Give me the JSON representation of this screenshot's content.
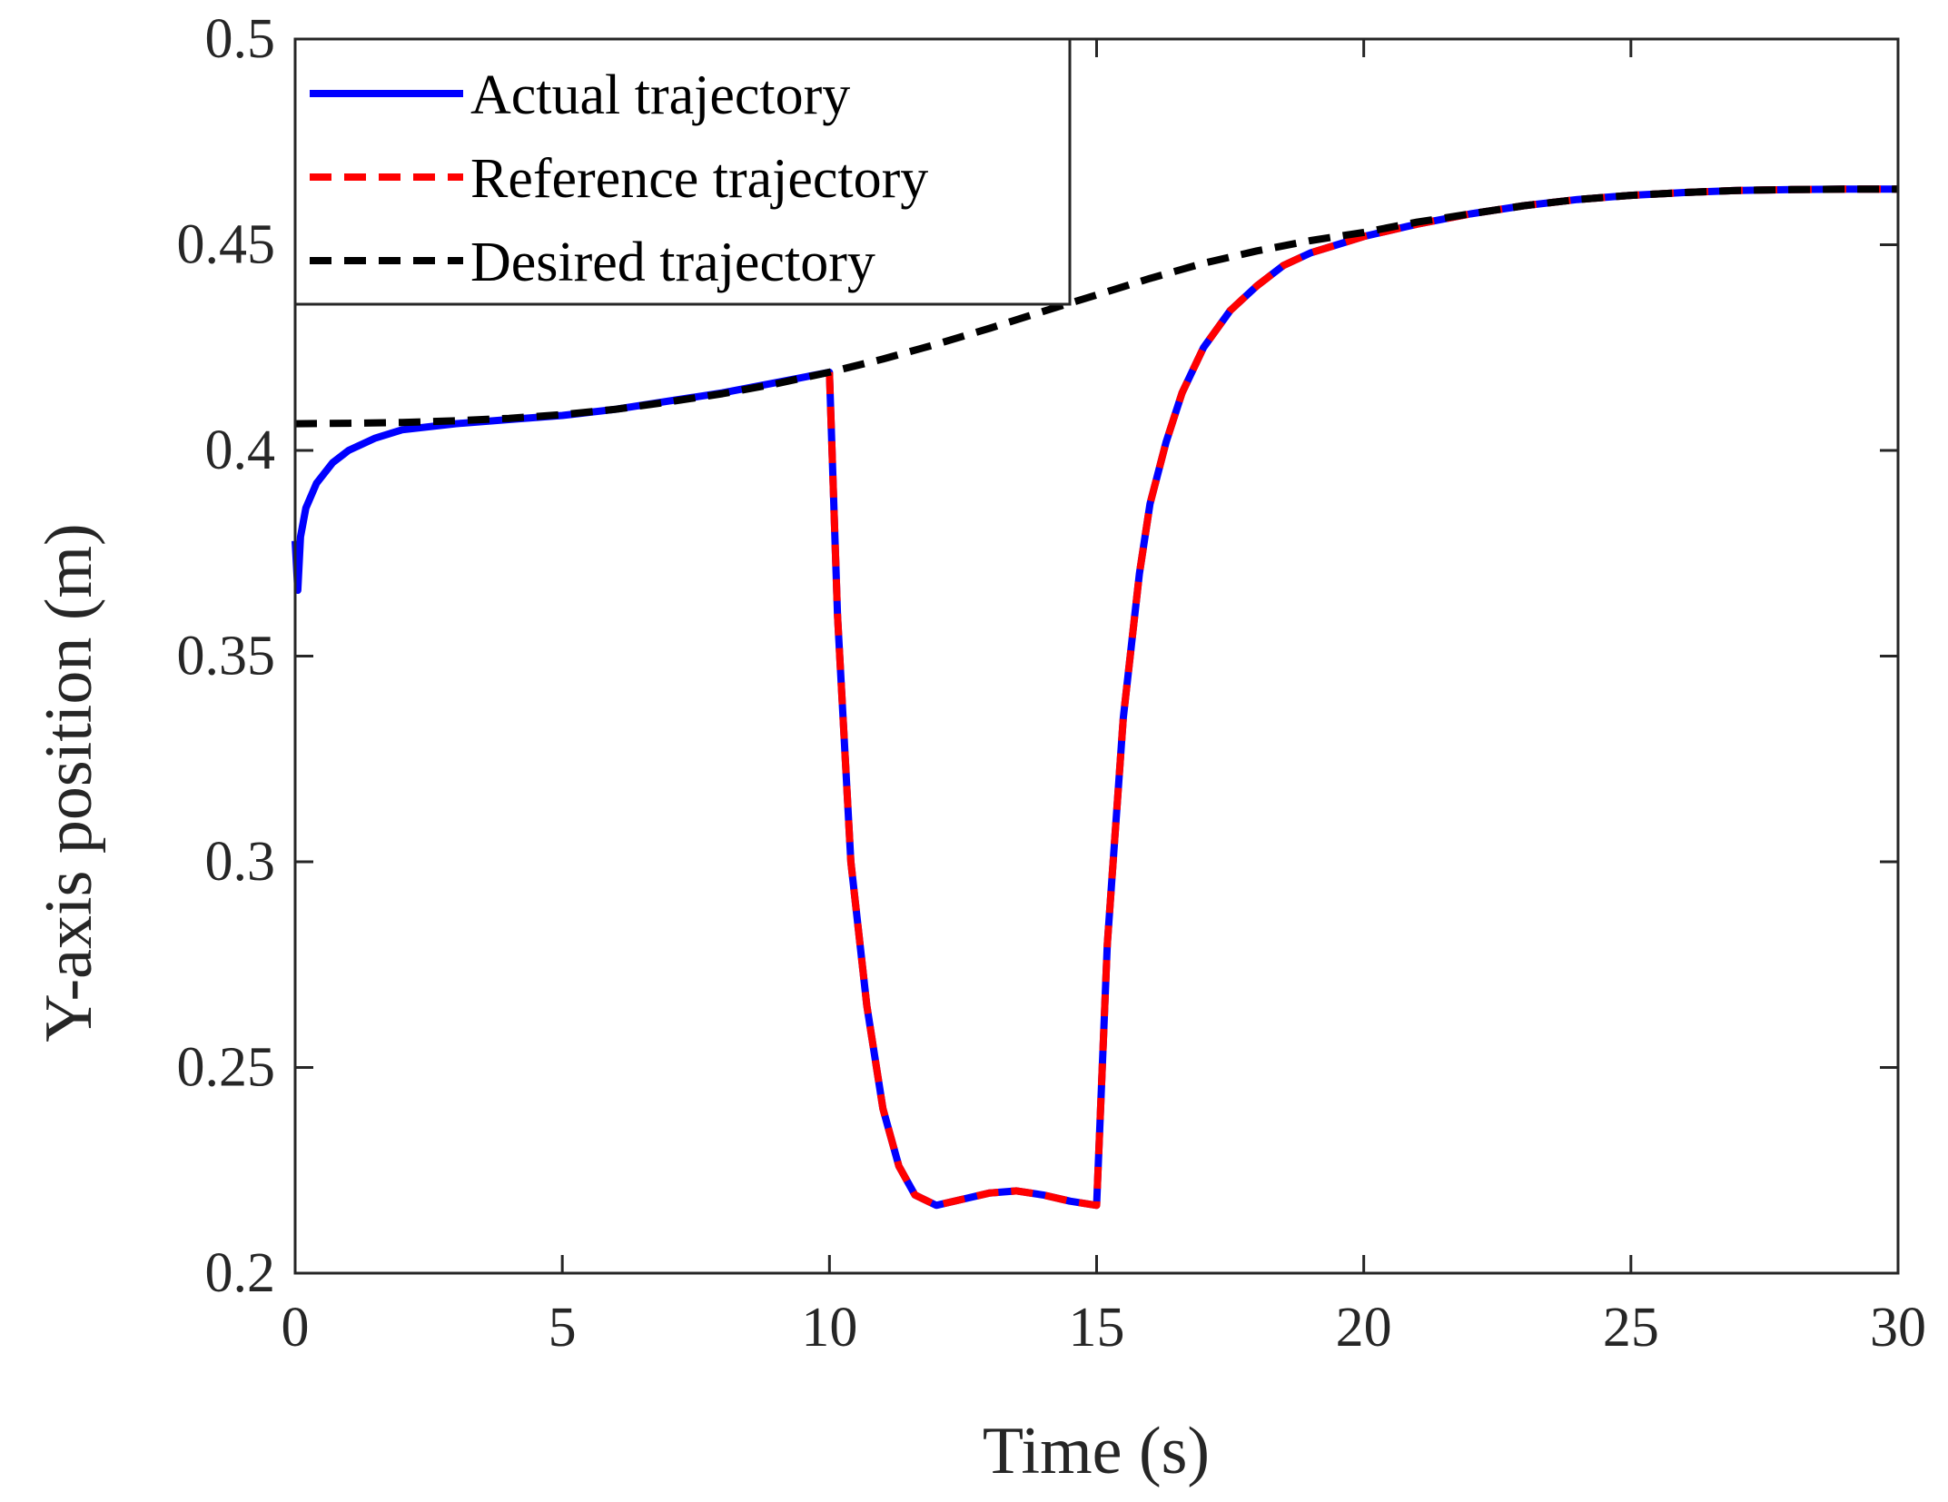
{
  "chart_data": {
    "type": "line",
    "title": "",
    "xlabel": "Time (s)",
    "ylabel": "Y-axis position (m)",
    "xlim": [
      0,
      30
    ],
    "ylim": [
      0.2,
      0.5
    ],
    "xticks": [
      0,
      5,
      10,
      15,
      20,
      25,
      30
    ],
    "xtick_labels": [
      "0",
      "5",
      "10",
      "15",
      "20",
      "25",
      "30"
    ],
    "yticks": [
      0.2,
      0.25,
      0.3,
      0.35,
      0.4,
      0.45,
      0.5
    ],
    "ytick_labels": [
      "0.2",
      "0.25",
      "0.3",
      "0.35",
      "0.4",
      "0.45",
      "0.5"
    ],
    "grid": false,
    "legend_position": "top-left",
    "series": [
      {
        "name": "Actual trajectory",
        "color": "#0000ff",
        "style": "solid",
        "x": [
          0,
          0.05,
          0.1,
          0.2,
          0.4,
          0.7,
          1.0,
          1.5,
          2.0,
          3.0,
          4.0,
          5.0,
          6.0,
          7.0,
          8.0,
          9.0,
          10.0,
          10.15,
          10.4,
          10.7,
          11.0,
          11.3,
          11.6,
          12.0,
          12.5,
          13.0,
          13.5,
          14.0,
          14.5,
          15.0,
          15.2,
          15.5,
          15.8,
          16.0,
          16.3,
          16.6,
          17.0,
          17.5,
          18.0,
          18.5,
          19.0,
          19.5,
          20.0,
          21.0,
          22.0,
          23.0,
          24.0,
          25.0,
          26.0,
          27.0,
          28.0,
          29.0,
          30.0
        ],
        "y": [
          0.378,
          0.366,
          0.379,
          0.386,
          0.392,
          0.397,
          0.4,
          0.403,
          0.405,
          0.4065,
          0.4075,
          0.4085,
          0.41,
          0.412,
          0.414,
          0.4165,
          0.419,
          0.36,
          0.3,
          0.265,
          0.24,
          0.226,
          0.219,
          0.2165,
          0.218,
          0.2195,
          0.22,
          0.219,
          0.2175,
          0.2165,
          0.28,
          0.335,
          0.37,
          0.387,
          0.402,
          0.414,
          0.425,
          0.434,
          0.44,
          0.445,
          0.448,
          0.45,
          0.452,
          0.455,
          0.4575,
          0.4595,
          0.461,
          0.462,
          0.4627,
          0.4632,
          0.4634,
          0.4635,
          0.4635
        ]
      },
      {
        "name": "Reference trajectory",
        "color": "#ff0000",
        "style": "dashed",
        "x": [
          10.0,
          10.15,
          10.4,
          10.7,
          11.0,
          11.3,
          11.6,
          12.0,
          12.5,
          13.0,
          13.5,
          14.0,
          14.5,
          15.0,
          15.2,
          15.5,
          15.8,
          16.0,
          16.3,
          16.6,
          17.0,
          17.5,
          18.0,
          18.5,
          19.0,
          19.5,
          20.0,
          21.0,
          22.0,
          23.0,
          24.0,
          25.0,
          26.0,
          27.0,
          28.0,
          29.0,
          30.0
        ],
        "y": [
          0.419,
          0.36,
          0.3,
          0.265,
          0.24,
          0.226,
          0.219,
          0.2165,
          0.218,
          0.2195,
          0.22,
          0.219,
          0.2175,
          0.2165,
          0.28,
          0.335,
          0.37,
          0.387,
          0.402,
          0.414,
          0.425,
          0.434,
          0.44,
          0.445,
          0.448,
          0.45,
          0.452,
          0.455,
          0.4575,
          0.4595,
          0.461,
          0.462,
          0.4627,
          0.4632,
          0.4634,
          0.4635,
          0.4635
        ]
      },
      {
        "name": "Desired trajectory",
        "color": "#000000",
        "style": "dashed",
        "x": [
          0,
          1,
          2,
          3,
          4,
          5,
          6,
          7,
          8,
          9,
          10,
          11,
          12,
          13,
          14,
          15,
          16,
          17,
          18,
          19,
          20,
          21,
          22,
          23,
          24,
          25,
          26,
          27,
          28,
          29,
          30
        ],
        "y": [
          0.4065,
          0.4066,
          0.4068,
          0.4072,
          0.4078,
          0.4087,
          0.41,
          0.4118,
          0.4138,
          0.4162,
          0.419,
          0.4222,
          0.4258,
          0.4297,
          0.4338,
          0.4378,
          0.4418,
          0.4455,
          0.4485,
          0.451,
          0.453,
          0.4555,
          0.4575,
          0.4595,
          0.461,
          0.462,
          0.4627,
          0.4632,
          0.4634,
          0.4635,
          0.4635
        ]
      }
    ]
  }
}
